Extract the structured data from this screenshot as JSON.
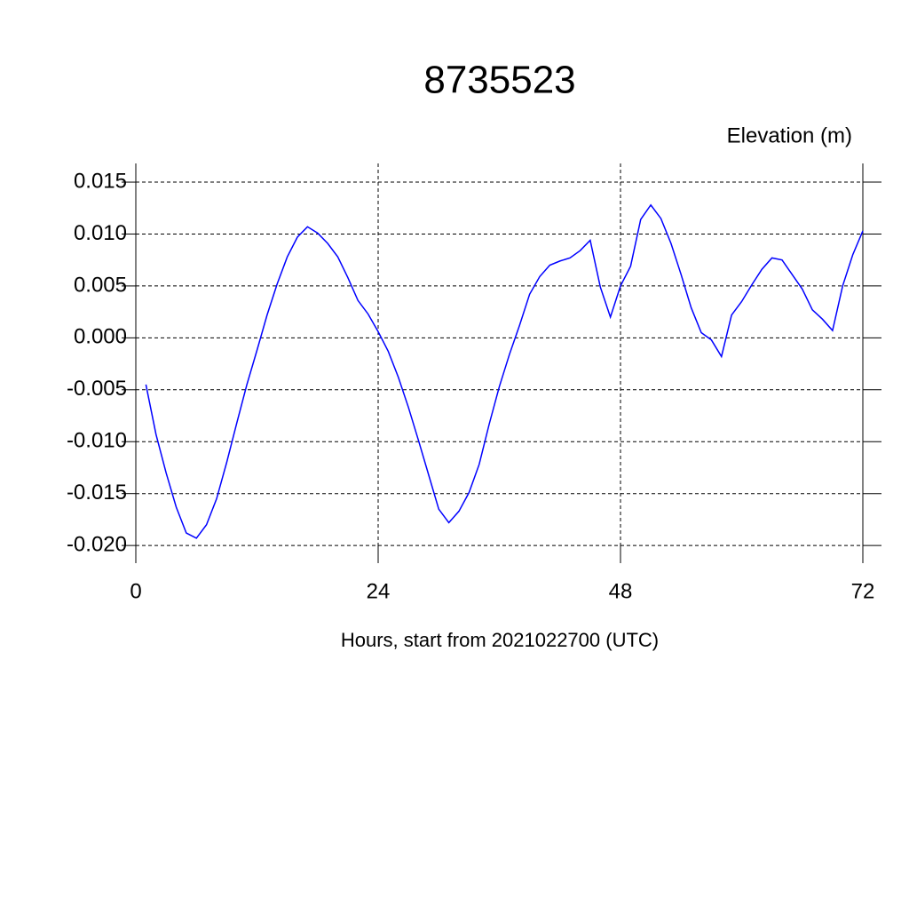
{
  "chart_data": {
    "type": "line",
    "title": "8735523",
    "y_label": "Elevation (m)",
    "x_label": "Hours, start from 2021022700 (UTC)",
    "color": "#0000ff",
    "grid": true,
    "x": [
      1,
      2,
      3,
      4,
      5,
      6,
      7,
      8,
      9,
      10,
      11,
      12,
      13,
      14,
      15,
      16,
      17,
      18,
      19,
      20,
      21,
      22,
      23,
      24,
      25,
      26,
      27,
      28,
      29,
      30,
      31,
      32,
      33,
      34,
      35,
      36,
      37,
      38,
      39,
      40,
      41,
      42,
      43,
      44,
      45,
      46,
      47,
      48,
      49,
      50,
      51,
      52,
      53,
      54,
      55,
      56,
      57,
      58,
      59,
      60,
      61,
      62,
      63,
      64,
      65,
      66,
      67,
      68,
      69,
      70,
      71,
      72
    ],
    "values": [
      -0.0045,
      -0.0093,
      -0.013,
      -0.0163,
      -0.0188,
      -0.0193,
      -0.018,
      -0.0155,
      -0.012,
      -0.0082,
      -0.0045,
      -0.0012,
      0.0022,
      0.0052,
      0.0078,
      0.0097,
      0.0107,
      0.0101,
      0.0091,
      0.0078,
      0.0058,
      0.0036,
      0.0023,
      0.0006,
      -0.0013,
      -0.0038,
      -0.0067,
      -0.0099,
      -0.0132,
      -0.0165,
      -0.0178,
      -0.0167,
      -0.0149,
      -0.0122,
      -0.0083,
      -0.0047,
      -0.0016,
      0.0012,
      0.0042,
      0.0059,
      0.007,
      0.0074,
      0.0077,
      0.0084,
      0.0094,
      0.0049,
      0.002,
      0.005,
      0.0069,
      0.0114,
      0.0128,
      0.0115,
      0.0091,
      0.0061,
      0.0029,
      0.0005,
      -0.0002,
      -0.0018,
      0.0022,
      0.0035,
      0.0051,
      0.0066,
      0.0077,
      0.0075,
      0.0061,
      0.0047,
      0.0027,
      0.0018,
      0.0007,
      0.005,
      0.008,
      0.0103
    ],
    "xlim": [
      0,
      72
    ],
    "xticks": [
      0,
      24,
      48,
      72
    ],
    "ylim": [
      -0.0217,
      0.0168
    ],
    "yticks": [
      {
        "value": -0.02,
        "label": "-0.020"
      },
      {
        "value": -0.015,
        "label": "-0.015"
      },
      {
        "value": -0.01,
        "label": "-0.010"
      },
      {
        "value": -0.005,
        "label": "-0.005"
      },
      {
        "value": 0,
        "label": "0.000"
      },
      {
        "value": 0.005,
        "label": "0.005"
      },
      {
        "value": 0.01,
        "label": "0.010"
      },
      {
        "value": 0.015,
        "label": "0.015"
      }
    ]
  }
}
